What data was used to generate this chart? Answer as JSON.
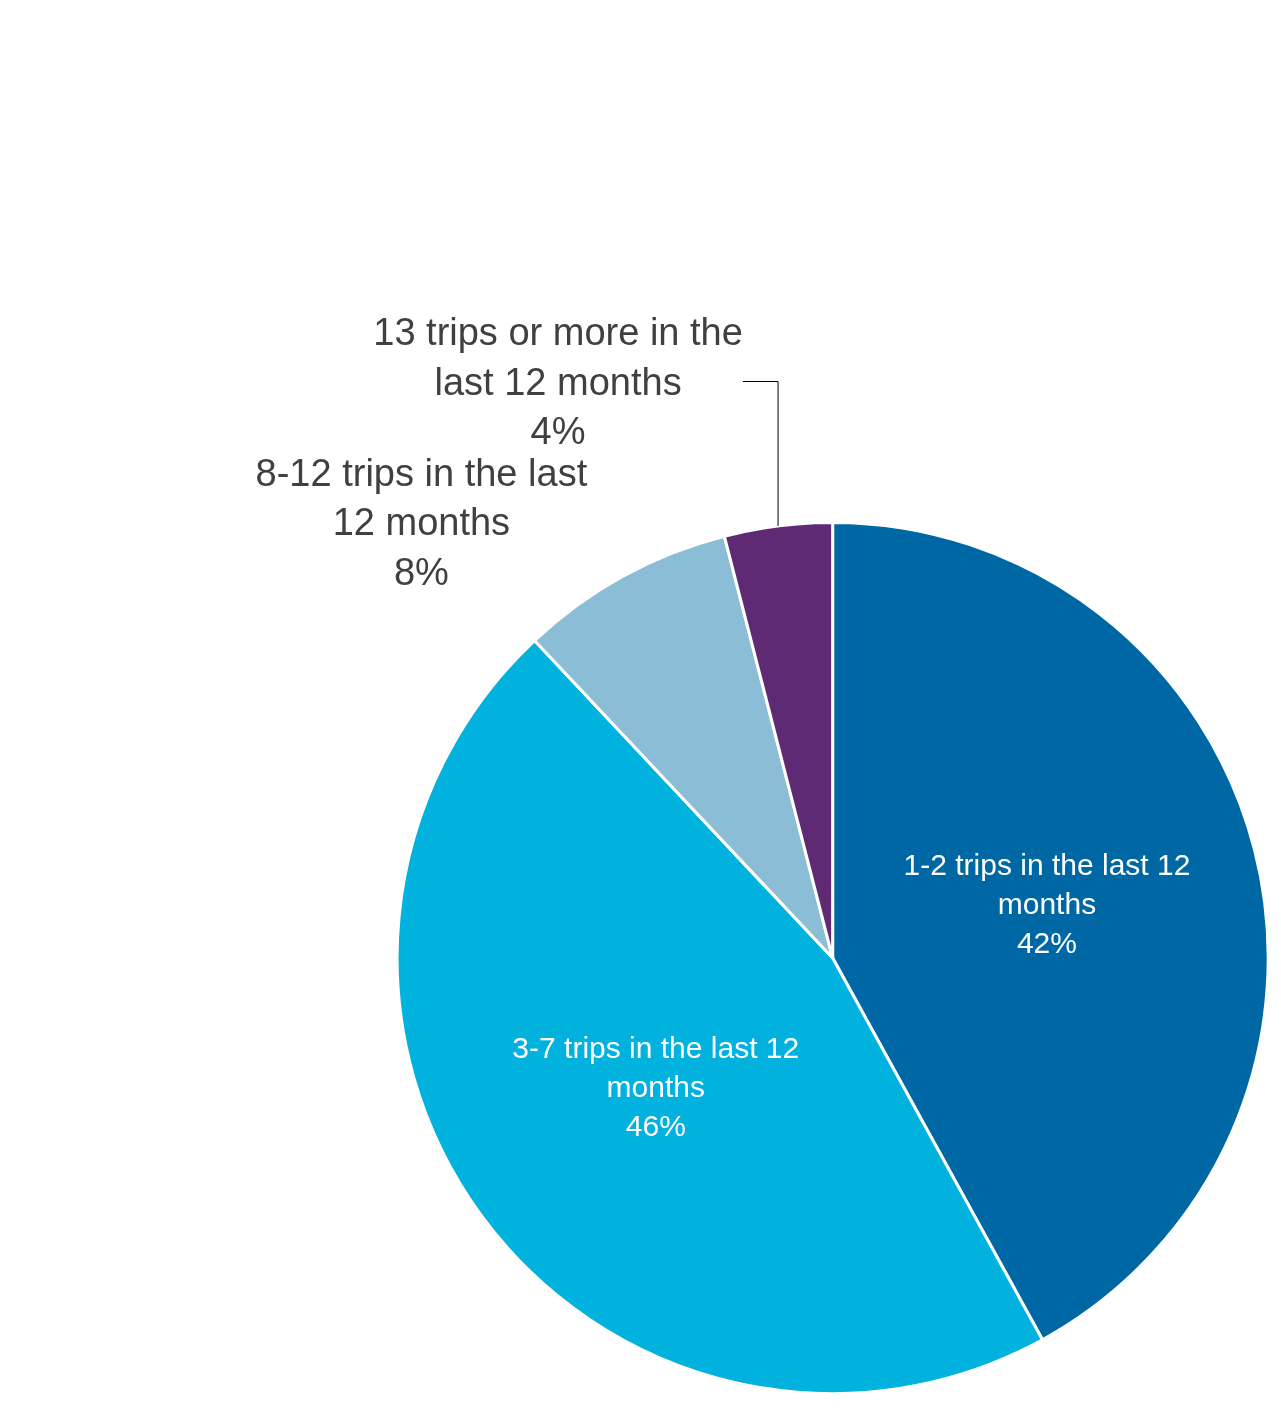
{
  "chart_data": {
    "type": "pie",
    "categories": [
      "1-2 trips in the last 12 months",
      "3-7 trips in the last 12 months",
      "8-12 trips in the last 12 months",
      "13 trips or more in the last 12 months"
    ],
    "values": [
      42,
      46,
      8,
      4
    ],
    "colors": [
      "#0067a5",
      "#00b2dd",
      "#8bbdd6",
      "#5f2a74"
    ],
    "value_labels": [
      "42%",
      "46%",
      "8%",
      "4%"
    ],
    "legend": false
  }
}
